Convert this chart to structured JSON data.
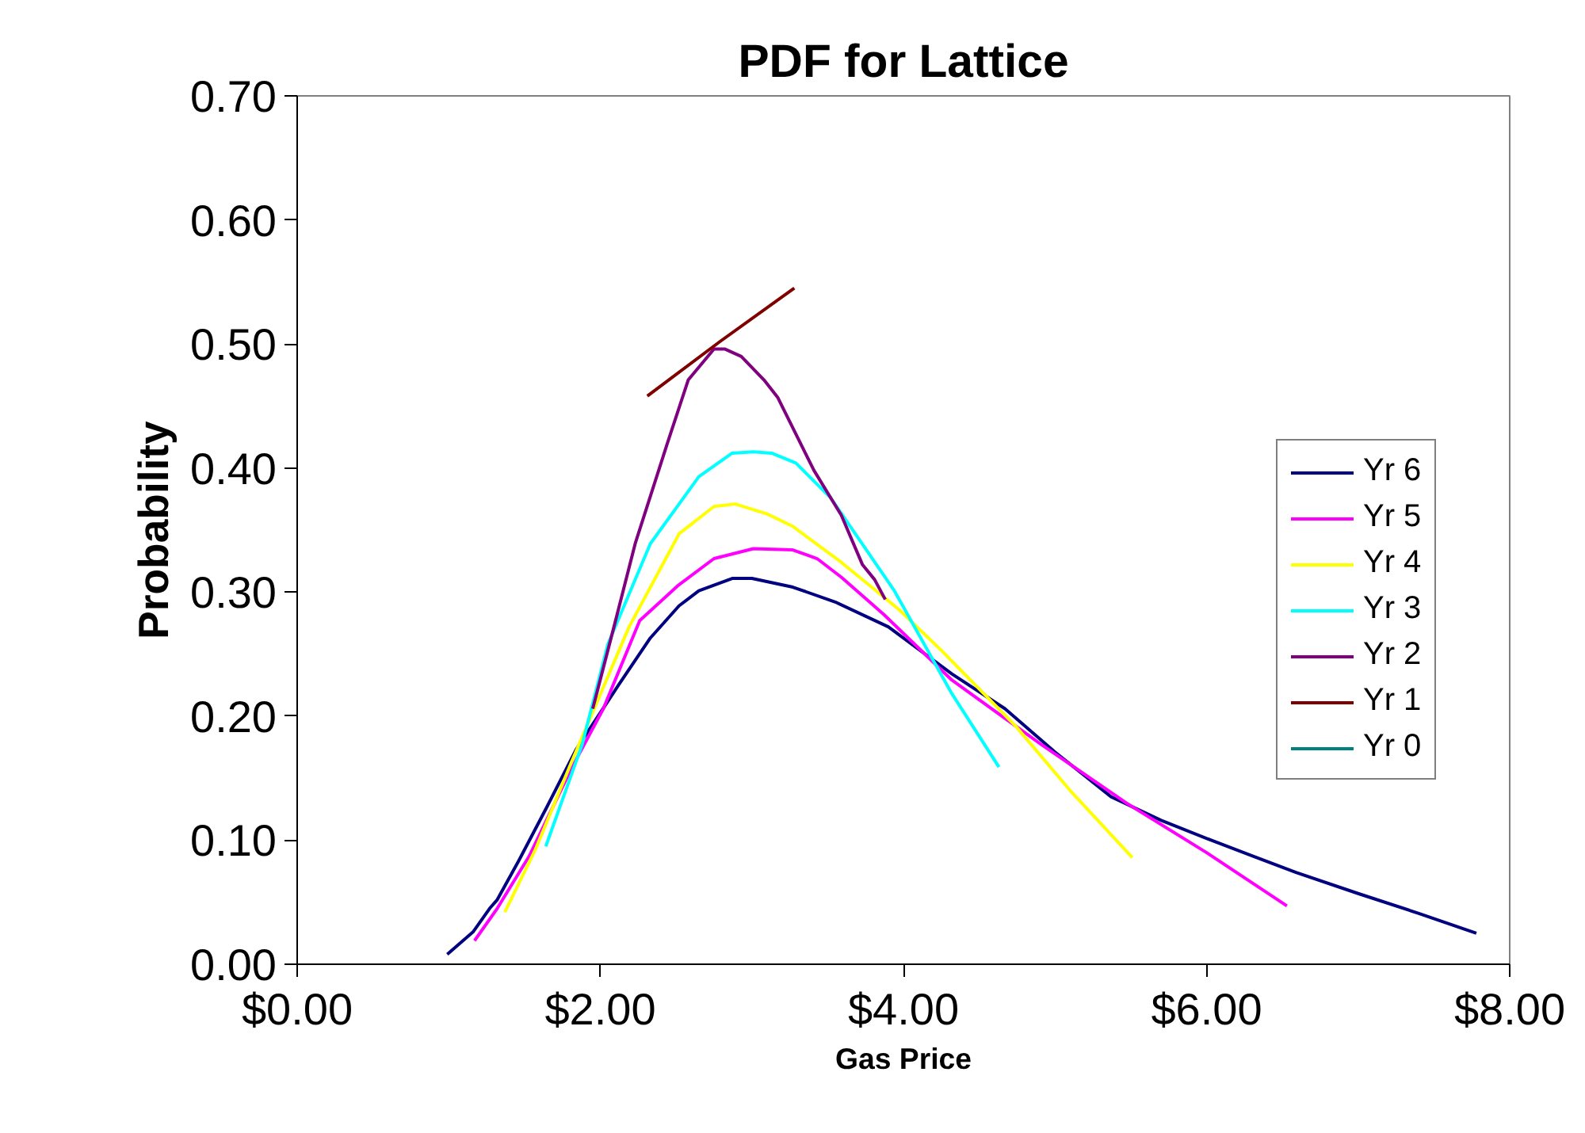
{
  "chart_data": {
    "type": "line",
    "title": "PDF for Lattice",
    "xlabel": "Gas Price",
    "ylabel": "Probability",
    "xlim": [
      0,
      8
    ],
    "ylim": [
      0,
      0.7
    ],
    "xticks": [
      {
        "value": 0,
        "label": "$0.00"
      },
      {
        "value": 2,
        "label": "$2.00"
      },
      {
        "value": 4,
        "label": "$4.00"
      },
      {
        "value": 6,
        "label": "$6.00"
      },
      {
        "value": 8,
        "label": "$8.00"
      }
    ],
    "yticks": [
      {
        "value": 0,
        "label": "0.00"
      },
      {
        "value": 0.1,
        "label": "0.10"
      },
      {
        "value": 0.2,
        "label": "0.20"
      },
      {
        "value": 0.3,
        "label": "0.30"
      },
      {
        "value": 0.4,
        "label": "0.40"
      },
      {
        "value": 0.5,
        "label": "0.50"
      },
      {
        "value": 0.6,
        "label": "0.60"
      },
      {
        "value": 0.7,
        "label": "0.70"
      }
    ],
    "grid": false,
    "legend": "right",
    "marker": "none",
    "line_style": "solid",
    "series": [
      {
        "name": "Yr 6",
        "color": "#000080",
        "x": [
          0.99,
          1.16,
          1.27,
          1.32,
          1.46,
          1.64,
          1.84,
          2.12,
          2.33,
          2.52,
          2.65,
          2.87,
          3.0,
          3.27,
          3.55,
          3.9,
          4.32,
          4.67,
          5.0,
          5.37,
          5.7,
          6.03,
          6.31,
          6.59,
          7.0,
          7.4,
          7.78
        ],
        "values": [
          0.008,
          0.026,
          0.045,
          0.052,
          0.083,
          0.125,
          0.173,
          0.225,
          0.263,
          0.289,
          0.301,
          0.311,
          0.311,
          0.304,
          0.292,
          0.272,
          0.234,
          0.206,
          0.171,
          0.135,
          0.116,
          0.1,
          0.087,
          0.074,
          0.057,
          0.041,
          0.025
        ]
      },
      {
        "name": "Yr 5",
        "color": "#ff00ff",
        "x": [
          1.17,
          1.32,
          1.53,
          1.81,
          2.02,
          2.26,
          2.51,
          2.75,
          3.01,
          3.27,
          3.43,
          3.59,
          3.87,
          4.32,
          4.9,
          5.47,
          6.0,
          6.53
        ],
        "values": [
          0.019,
          0.045,
          0.087,
          0.158,
          0.206,
          0.277,
          0.305,
          0.327,
          0.335,
          0.334,
          0.327,
          0.312,
          0.282,
          0.229,
          0.178,
          0.13,
          0.09,
          0.047
        ]
      },
      {
        "name": "Yr 4",
        "color": "#ffff00",
        "x": [
          1.37,
          1.57,
          1.81,
          2.19,
          2.52,
          2.75,
          2.89,
          3.1,
          3.27,
          3.59,
          3.97,
          4.25,
          4.74,
          5.1,
          5.51
        ],
        "values": [
          0.042,
          0.092,
          0.163,
          0.272,
          0.347,
          0.369,
          0.371,
          0.363,
          0.353,
          0.324,
          0.286,
          0.253,
          0.192,
          0.14,
          0.086
        ]
      },
      {
        "name": "Yr 3",
        "color": "#00ffff",
        "x": [
          1.64,
          1.88,
          2.05,
          2.33,
          2.65,
          2.87,
          3.01,
          3.13,
          3.29,
          3.52,
          3.94,
          4.32,
          4.63
        ],
        "values": [
          0.095,
          0.177,
          0.258,
          0.339,
          0.393,
          0.412,
          0.413,
          0.412,
          0.404,
          0.376,
          0.301,
          0.218,
          0.159
        ]
      },
      {
        "name": "Yr 2",
        "color": "#800080",
        "x": [
          1.95,
          2.09,
          2.23,
          2.44,
          2.58,
          2.75,
          2.82,
          2.93,
          3.08,
          3.17,
          3.41,
          3.59,
          3.73,
          3.81,
          3.88
        ],
        "values": [
          0.206,
          0.272,
          0.339,
          0.419,
          0.471,
          0.496,
          0.496,
          0.49,
          0.471,
          0.457,
          0.398,
          0.362,
          0.322,
          0.31,
          0.294
        ]
      },
      {
        "name": "Yr 1",
        "color": "#800000",
        "x": [
          2.31,
          2.79,
          3.28
        ],
        "values": [
          0.458,
          0.502,
          0.545
        ]
      },
      {
        "name": "Yr 0",
        "color": "#008080"
      }
    ]
  }
}
